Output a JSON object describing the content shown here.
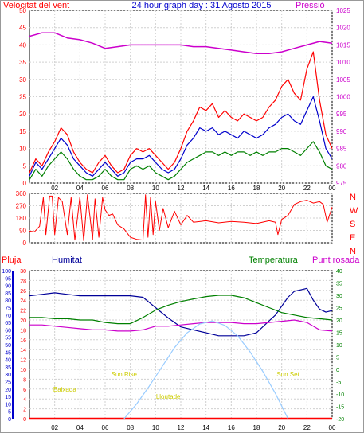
{
  "title": "24 hour graph day : 31 Agosto 2015",
  "colors": {
    "wind": "#ff0000",
    "gust_avg": "#0000cc",
    "wind_low": "#008000",
    "pressure": "#cc00cc",
    "direction": "#ff0000",
    "rain": "#ff0000",
    "humidity": "#000099",
    "temperature": "#008000",
    "dewpoint": "#cc00cc",
    "solar": "#99ccff",
    "sun_labels": "#cccc00"
  },
  "chart_data": [
    {
      "type": "line",
      "name": "wind-pressure",
      "left_axis_label": "Velocitat del vent",
      "right_axis_label": "Pressió",
      "x_ticks": [
        "02",
        "04",
        "06",
        "08",
        "10",
        "12",
        "14",
        "16",
        "18",
        "20",
        "22",
        "00"
      ],
      "x_range": [
        0,
        24
      ],
      "left_ylim": [
        0,
        50
      ],
      "left_ticks": [
        0,
        5,
        10,
        15,
        20,
        25,
        30,
        35,
        40,
        45,
        50
      ],
      "right_ylim": [
        975,
        1025
      ],
      "right_ticks": [
        975,
        980,
        985,
        990,
        995,
        1000,
        1005,
        1010,
        1015,
        1020,
        1025
      ],
      "series": [
        {
          "key": "wind",
          "x": [
            0,
            0.5,
            1,
            1.5,
            2,
            2.5,
            3,
            3.5,
            4,
            4.5,
            5,
            5.5,
            6,
            6.5,
            7,
            7.5,
            8,
            8.5,
            9,
            9.5,
            10,
            10.5,
            11,
            11.5,
            12,
            12.5,
            13,
            13.5,
            14,
            14.5,
            15,
            15.5,
            16,
            16.5,
            17,
            17.5,
            18,
            18.5,
            19,
            19.5,
            20,
            20.5,
            21,
            21.5,
            22,
            22.5,
            23,
            23.5,
            24
          ],
          "values": [
            3,
            7,
            5,
            9,
            12,
            16,
            14,
            9,
            6,
            4,
            3,
            6,
            8,
            5,
            3,
            4,
            8,
            10,
            9,
            10,
            8,
            6,
            4,
            6,
            10,
            15,
            18,
            22,
            21,
            23,
            19,
            21,
            19,
            18,
            20,
            19,
            18,
            19,
            22,
            24,
            28,
            30,
            26,
            24,
            33,
            38,
            24,
            14,
            10
          ]
        },
        {
          "key": "gust_avg",
          "x": [
            0,
            0.5,
            1,
            1.5,
            2,
            2.5,
            3,
            3.5,
            4,
            4.5,
            5,
            5.5,
            6,
            6.5,
            7,
            7.5,
            8,
            8.5,
            9,
            9.5,
            10,
            10.5,
            11,
            11.5,
            12,
            12.5,
            13,
            13.5,
            14,
            14.5,
            15,
            15.5,
            16,
            16.5,
            17,
            17.5,
            18,
            18.5,
            19,
            19.5,
            20,
            20.5,
            21,
            21.5,
            22,
            22.5,
            23,
            23.5,
            24
          ],
          "values": [
            2,
            6,
            4,
            7,
            10,
            13,
            11,
            7,
            5,
            3,
            2,
            4,
            6,
            4,
            2,
            3,
            6,
            7,
            7,
            8,
            6,
            4,
            3,
            4,
            7,
            11,
            13,
            16,
            15,
            16,
            14,
            15,
            14,
            13,
            15,
            14,
            13,
            14,
            16,
            17,
            19,
            20,
            18,
            17,
            21,
            25,
            18,
            10,
            7
          ]
        },
        {
          "key": "wind_low",
          "x": [
            0,
            0.5,
            1,
            1.5,
            2,
            2.5,
            3,
            3.5,
            4,
            4.5,
            5,
            5.5,
            6,
            6.5,
            7,
            7.5,
            8,
            8.5,
            9,
            9.5,
            10,
            10.5,
            11,
            11.5,
            12,
            12.5,
            13,
            13.5,
            14,
            14.5,
            15,
            15.5,
            16,
            16.5,
            17,
            17.5,
            18,
            18.5,
            19,
            19.5,
            20,
            20.5,
            21,
            21.5,
            22,
            22.5,
            23,
            23.5,
            24
          ],
          "values": [
            1,
            4,
            2,
            5,
            7,
            9,
            7,
            4,
            2,
            1,
            1,
            2,
            4,
            2,
            1,
            1,
            4,
            5,
            4,
            5,
            3,
            2,
            1,
            2,
            4,
            6,
            7,
            8,
            9,
            9,
            8,
            9,
            8,
            9,
            9,
            8,
            9,
            8,
            9,
            9,
            10,
            10,
            9,
            8,
            10,
            12,
            9,
            5,
            4
          ]
        },
        {
          "key": "pressure",
          "axis": "right",
          "x": [
            0,
            1,
            2,
            3,
            4,
            5,
            6,
            7,
            8,
            9,
            10,
            11,
            12,
            13,
            14,
            15,
            16,
            17,
            18,
            19,
            20,
            21,
            22,
            23,
            24
          ],
          "values": [
            1017.5,
            1018.5,
            1018.5,
            1017,
            1016.5,
            1015.5,
            1014,
            1014.5,
            1015,
            1015,
            1015,
            1015,
            1015,
            1014.5,
            1014.5,
            1014,
            1013.5,
            1013,
            1012.5,
            1012.5,
            1013,
            1014,
            1015,
            1016,
            1015.5
          ]
        }
      ]
    },
    {
      "type": "line",
      "name": "wind-direction",
      "right_axis_label": "NWSEN",
      "x_range": [
        0,
        24
      ],
      "ylim": [
        0,
        360
      ],
      "ticks": [
        0,
        45,
        90,
        135,
        180,
        225,
        270,
        315,
        360
      ],
      "series": [
        {
          "key": "direction",
          "x": [
            0,
            0.4,
            0.8,
            1.1,
            1.3,
            1.6,
            1.8,
            2,
            2.3,
            2.6,
            3,
            3.3,
            3.6,
            4,
            4.3,
            4.6,
            5,
            5.2,
            5.5,
            5.8,
            6,
            6.3,
            6.6,
            7,
            7.5,
            8,
            8.5,
            9,
            9.2,
            9.4,
            9.6,
            9.8,
            10,
            10.3,
            10.6,
            11,
            11.5,
            12,
            12.5,
            13,
            14,
            15,
            16,
            17,
            18,
            19,
            19.5,
            19.7,
            20,
            20.5,
            21,
            21.5,
            22,
            22.5,
            23,
            23.3,
            23.6,
            24
          ],
          "values": [
            85,
            80,
            120,
            330,
            60,
            340,
            340,
            60,
            330,
            300,
            60,
            330,
            20,
            335,
            15,
            350,
            25,
            320,
            40,
            330,
            240,
            200,
            210,
            130,
            100,
            40,
            25,
            20,
            350,
            40,
            330,
            60,
            300,
            90,
            250,
            110,
            230,
            130,
            200,
            150,
            160,
            145,
            155,
            150,
            140,
            160,
            150,
            60,
            170,
            200,
            280,
            300,
            310,
            290,
            300,
            280,
            150,
            260
          ]
        }
      ]
    },
    {
      "type": "line",
      "name": "humidity-temperature",
      "labels": {
        "rain": "Pluja",
        "humidity": "Humitat",
        "temperature": "Temperatura",
        "dewpoint": "Punt rosada"
      },
      "x_range": [
        0,
        24
      ],
      "left_outer_ylim": [
        0,
        100
      ],
      "left_outer_ticks": [
        0,
        5,
        10,
        15,
        20,
        25,
        30,
        35,
        40,
        45,
        50,
        55,
        60,
        65,
        70,
        75,
        80,
        85,
        90,
        95,
        100
      ],
      "left_inner_ylim": [
        0,
        30
      ],
      "left_inner_ticks": [
        0,
        2,
        4,
        6,
        8,
        10,
        12,
        14,
        16,
        18,
        20,
        22,
        24,
        26,
        28,
        30
      ],
      "right_ylim": [
        -20,
        40
      ],
      "right_ticks": [
        -20,
        -15,
        -10,
        -5,
        0,
        5,
        10,
        15,
        20,
        25,
        30,
        35,
        40
      ],
      "series": [
        {
          "key": "humidity",
          "axis": "left_outer",
          "x": [
            0,
            1,
            2,
            3,
            4,
            5,
            6,
            7,
            8,
            9,
            10,
            11,
            12,
            13,
            14,
            15,
            16,
            17,
            18,
            19,
            19.5,
            20,
            20.5,
            21,
            21.5,
            22,
            22.5,
            23,
            23.5,
            24
          ],
          "values": [
            83,
            84,
            85,
            84,
            83,
            83,
            83,
            83,
            83,
            82,
            75,
            68,
            62,
            60,
            58,
            56,
            56,
            56,
            58,
            66,
            70,
            76,
            82,
            86,
            87,
            88,
            80,
            74,
            72,
            73
          ]
        },
        {
          "key": "temperature",
          "axis": "right",
          "x": [
            0,
            1,
            2,
            3,
            4,
            5,
            6,
            7,
            8,
            9,
            10,
            11,
            12,
            13,
            14,
            15,
            16,
            17,
            18,
            19,
            20,
            21,
            22,
            23,
            24
          ],
          "values": [
            21,
            21,
            20.5,
            20.5,
            20,
            20,
            19,
            18.5,
            18.5,
            21,
            24,
            26,
            27.5,
            28.5,
            29.5,
            30,
            30,
            29,
            27,
            25,
            23,
            22,
            21,
            20.5,
            20
          ]
        },
        {
          "key": "dewpoint",
          "axis": "right",
          "x": [
            0,
            1,
            2,
            3,
            4,
            5,
            6,
            7,
            8,
            9,
            10,
            11,
            12,
            13,
            14,
            15,
            16,
            17,
            18,
            19,
            20,
            21,
            22,
            23,
            24
          ],
          "values": [
            18,
            18,
            17.5,
            17,
            16.5,
            16,
            16,
            15.5,
            15.5,
            16,
            17.5,
            17.5,
            18,
            18.5,
            19,
            19,
            19,
            18.5,
            18.5,
            19,
            19.5,
            20,
            19,
            16,
            15.5
          ]
        },
        {
          "key": "rain",
          "axis": "left_inner",
          "x": [
            0,
            24
          ],
          "values": [
            0,
            0
          ]
        },
        {
          "key": "solar",
          "axis": "left_outer",
          "x": [
            7.5,
            8.5,
            9.5,
            10.5,
            11.5,
            12.5,
            13.5,
            14.5,
            15.5,
            16.5,
            17.5,
            18.5,
            19.5,
            20.5
          ],
          "values": [
            0,
            10,
            22,
            35,
            48,
            58,
            64,
            66,
            63,
            56,
            45,
            32,
            17,
            0
          ]
        }
      ],
      "sun_events": [
        {
          "label": "Baixada",
          "x": 2.8,
          "y": 20
        },
        {
          "label": "Sun Rise",
          "x": 7.5,
          "y": 30
        },
        {
          "label": "Lloutade",
          "x": 11,
          "y": 15
        },
        {
          "label": "Sun Set",
          "x": 20.5,
          "y": 30
        }
      ]
    }
  ]
}
